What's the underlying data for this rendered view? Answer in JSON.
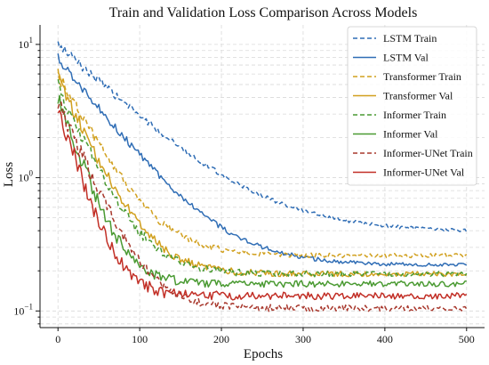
{
  "chart_data": {
    "type": "line",
    "title": "Train and Validation Loss Comparison Across Models",
    "xlabel": "Epochs",
    "ylabel": "Loss",
    "xlim": [
      -22,
      522
    ],
    "ylim": [
      0.075,
      14
    ],
    "yscale": "log",
    "xticks": [
      0,
      100,
      200,
      300,
      400,
      500
    ],
    "yticks": [
      {
        "value": 0.1,
        "base": "10",
        "exp": "−1"
      },
      {
        "value": 1,
        "base": "10",
        "exp": "0"
      },
      {
        "value": 10,
        "base": "10",
        "exp": "1"
      }
    ],
    "grid": true,
    "legend_position": "top-right",
    "series": [
      {
        "name": "LSTM Train",
        "color": "#2f6db5",
        "style": "dashed",
        "start": 10.0,
        "end": 0.39,
        "tau": 75,
        "noise": 0.045
      },
      {
        "name": "LSTM Val",
        "color": "#2f6db5",
        "style": "solid",
        "start": 8.0,
        "end": 0.22,
        "tau": 55,
        "noise": 0.05
      },
      {
        "name": "Transformer Train",
        "color": "#d1a01e",
        "style": "dashed",
        "start": 6.0,
        "end": 0.26,
        "tau": 38,
        "noise": 0.06
      },
      {
        "name": "Transformer Val",
        "color": "#d1a01e",
        "style": "solid",
        "start": 5.5,
        "end": 0.19,
        "tau": 33,
        "noise": 0.07
      },
      {
        "name": "Informer Train",
        "color": "#4a9a32",
        "style": "dashed",
        "start": 4.8,
        "end": 0.19,
        "tau": 32,
        "noise": 0.07
      },
      {
        "name": "Informer Val",
        "color": "#4a9a32",
        "style": "solid",
        "start": 4.2,
        "end": 0.16,
        "tau": 24,
        "noise": 0.08
      },
      {
        "name": "Informer-UNet Train",
        "color": "#a8382d",
        "style": "dashed",
        "start": 3.8,
        "end": 0.105,
        "tau": 30,
        "noise": 0.08
      },
      {
        "name": "Informer-UNet Val",
        "color": "#c22f26",
        "style": "solid",
        "start": 3.5,
        "end": 0.13,
        "tau": 22,
        "noise": 0.09
      }
    ]
  }
}
